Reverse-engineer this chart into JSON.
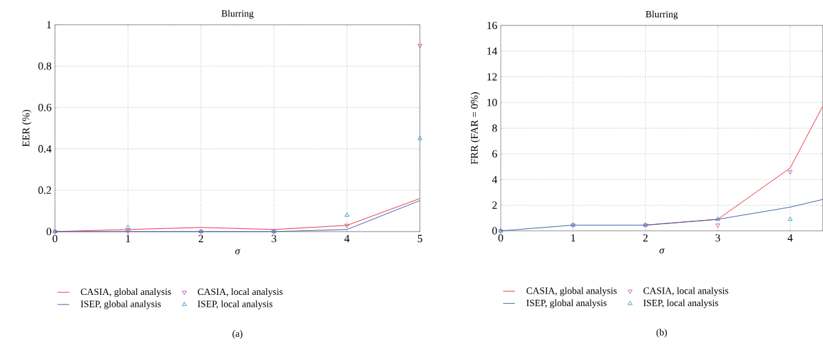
{
  "chart_data": [
    {
      "type": "line",
      "title": "Blurring",
      "xlabel": "σ",
      "ylabel": "EER (%)",
      "annotations": [
        "(a)"
      ],
      "xlim": [
        0,
        5
      ],
      "ylim": [
        0,
        1
      ],
      "xticks": [
        0,
        1,
        2,
        3,
        4,
        5
      ],
      "yticks": [
        0,
        0.2,
        0.4,
        0.6,
        0.8,
        1
      ],
      "grid": true,
      "legend": "bottom",
      "series": [
        {
          "name": "CASIA, global analysis",
          "type": "line",
          "marker": "none",
          "color": "#e8202a",
          "x": [
            0,
            1,
            2,
            3,
            4,
            5
          ],
          "values": [
            0,
            0.01,
            0.02,
            0.01,
            0.03,
            0.16
          ]
        },
        {
          "name": "CASIA, local analysis",
          "type": "scatter",
          "marker": "triangle-down",
          "color": "#c0409a",
          "x": [
            0,
            1,
            2,
            3,
            4,
            5
          ],
          "values": [
            0,
            0,
            0,
            0,
            0.03,
            0.9
          ]
        },
        {
          "name": "ISEP, global analysis",
          "type": "line",
          "marker": "none",
          "color": "#3050a8",
          "x": [
            0,
            1,
            2,
            3,
            4,
            5
          ],
          "values": [
            0,
            0,
            0,
            0,
            0.01,
            0.15
          ]
        },
        {
          "name": "ISEP, local analysis",
          "type": "scatter",
          "marker": "triangle",
          "color": "#1a88c8",
          "x": [
            0,
            1,
            2,
            3,
            4,
            5
          ],
          "values": [
            0,
            0.02,
            0,
            0,
            0.08,
            0.45
          ]
        }
      ]
    },
    {
      "type": "line",
      "title": "Blurring",
      "xlabel": "σ",
      "ylabel": "FRR (FAR = 0%)",
      "annotations": [
        "(b)"
      ],
      "xlim": [
        0,
        4.45
      ],
      "ylim": [
        0,
        16
      ],
      "xticks": [
        0,
        1,
        2,
        3,
        4
      ],
      "yticks": [
        0,
        2,
        4,
        6,
        8,
        10,
        12,
        14,
        16
      ],
      "grid": true,
      "legend": "bottom",
      "series": [
        {
          "name": "CASIA, global analysis",
          "type": "line",
          "marker": "none",
          "color": "#e8202a",
          "x": [
            2,
            3,
            4,
            4.45
          ],
          "values": [
            0.45,
            0.9,
            4.9,
            9.7
          ]
        },
        {
          "name": "CASIA, local analysis",
          "type": "scatter",
          "marker": "triangle-down",
          "color": "#c0409a",
          "x": [
            0,
            1,
            2,
            3,
            4
          ],
          "values": [
            0,
            0.45,
            0.45,
            0.45,
            4.6
          ]
        },
        {
          "name": "ISEP, global analysis",
          "type": "line",
          "marker": "none",
          "color": "#3050a8",
          "x": [
            0,
            1,
            2,
            3,
            4,
            4.45
          ],
          "values": [
            0,
            0.45,
            0.45,
            0.9,
            1.85,
            2.45
          ]
        },
        {
          "name": "ISEP, local analysis",
          "type": "scatter",
          "marker": "triangle",
          "color": "#1a88c8",
          "x": [
            0,
            1,
            2,
            3,
            4
          ],
          "values": [
            0,
            0.45,
            0.45,
            0.9,
            0.9
          ]
        }
      ]
    }
  ]
}
